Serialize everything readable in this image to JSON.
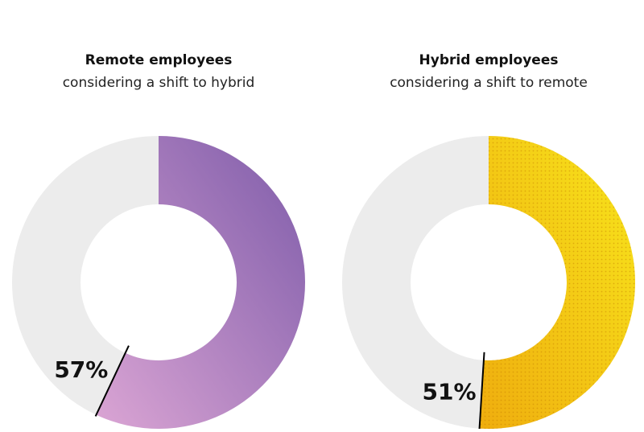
{
  "chart_data": [
    {
      "type": "donut",
      "title": "Remote employees",
      "subtitle": "considering a shift to hybrid",
      "values": [
        57
      ],
      "value_labels": [
        "57%"
      ],
      "colors": [
        "#dba5d4",
        "#7d5ba9"
      ],
      "pattern": "none"
    },
    {
      "type": "donut",
      "title": "Hybrid employees",
      "subtitle": "considering a shift to remote",
      "values": [
        51
      ],
      "value_labels": [
        "51%"
      ],
      "colors": [
        "#efad0e",
        "#f8e61c"
      ],
      "pattern": "dots"
    }
  ]
}
